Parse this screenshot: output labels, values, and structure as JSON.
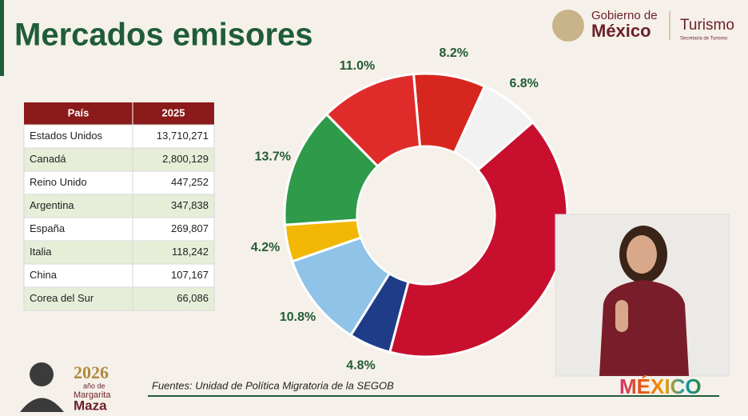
{
  "header": {
    "title": "Mercados emisores",
    "government": [
      "Gobierno de",
      "México"
    ],
    "ministry": "Turismo",
    "ministry_subtitle": "Secretaría de Turismo"
  },
  "table": {
    "columns": [
      "País",
      "2025"
    ],
    "rows": [
      [
        "Estados Unidos",
        "13,710,271"
      ],
      [
        "Canadá",
        "2,800,129"
      ],
      [
        "Reino Unido",
        "447,252"
      ],
      [
        "Argentina",
        "347,838"
      ],
      [
        "España",
        "269,807"
      ],
      [
        "Italia",
        "118,242"
      ],
      [
        "China",
        "107,167"
      ],
      [
        "Corea del Sur",
        "66,086"
      ]
    ]
  },
  "chart_data": {
    "type": "donut",
    "values": [
      8.2,
      6.8,
      4.8,
      10.8,
      4.2,
      13.7,
      11.0
    ],
    "value_labels": [
      "8.2%",
      "6.8%",
      "4.8%",
      "10.8%",
      "4.2%",
      "13.7%",
      "11.0%"
    ],
    "colors": [
      "#d7261e",
      "#f2f2f2",
      "#1f3c88",
      "#8fc3e8",
      "#f2b705",
      "#2e9a4a",
      "#e02b2b"
    ]
  },
  "footer": {
    "year": "2026",
    "year_caption": [
      "año de",
      "Margarita",
      "Maza"
    ],
    "source": "Fuentes: Unidad de Política Migratoria de la SEGOB",
    "brand": "MÉXICO"
  }
}
